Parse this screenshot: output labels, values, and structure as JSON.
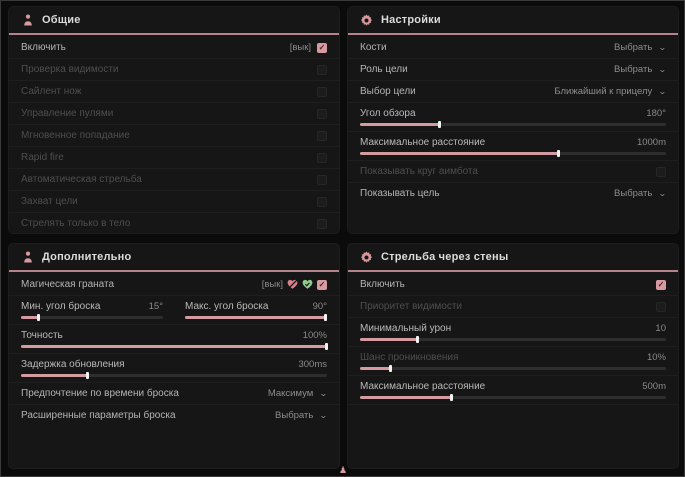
{
  "accent": {
    "pink": "#d79aa0",
    "green": "#8fc98f",
    "divider": "#b5848b"
  },
  "bottom_marker_glyph": "♟",
  "panels": {
    "general": {
      "title": "Общие",
      "rows": [
        {
          "label": "Включить",
          "value": "[вык]"
        },
        {
          "label": "Проверка видимости"
        },
        {
          "label": "Сайлент нож"
        },
        {
          "label": "Управление пулями"
        },
        {
          "label": "Мгновенное попадание"
        },
        {
          "label": "Rapid fire"
        },
        {
          "label": "Автоматическая стрельба"
        },
        {
          "label": "Захват цели"
        },
        {
          "label": "Стрелять только в тело"
        }
      ]
    },
    "settings": {
      "title": "Настройки",
      "bones": {
        "label": "Кости",
        "dropdown": "Выбрать"
      },
      "target_role": {
        "label": "Роль цели",
        "dropdown": "Выбрать"
      },
      "target_select": {
        "label": "Выбор цели",
        "dropdown": "Ближайший к прицелу"
      },
      "fov": {
        "label": "Угол обзора",
        "value": "180°",
        "fill": "26%"
      },
      "max_distance": {
        "label": "Максимальное расстояние",
        "value": "1000m",
        "fill": "65%"
      },
      "show_circle": {
        "label": "Показывать круг аимбота"
      },
      "show_target": {
        "label": "Показывать цель",
        "dropdown": "Выбрать"
      }
    },
    "additional": {
      "title": "Дополнительно",
      "magic_grenade": {
        "label": "Магическая граната",
        "value": "[вык]"
      },
      "min_throw": {
        "label": "Мин. угол броска",
        "value": "15°",
        "fill": "13%"
      },
      "max_throw": {
        "label": "Макс. угол броска",
        "value": "90°",
        "fill": "99%"
      },
      "accuracy": {
        "label": "Точность",
        "value": "100%",
        "fill": "100%"
      },
      "update_delay": {
        "label": "Задержка обновления",
        "value": "300ms",
        "fill": "22%"
      },
      "throw_time": {
        "label": "Предпочтение по времени броска",
        "dropdown": "Максимум"
      },
      "advanced_throw": {
        "label": "Расширенные параметры броска",
        "dropdown": "Выбрать"
      }
    },
    "wallbang": {
      "title": "Стрельба через стены",
      "enable": {
        "label": "Включить"
      },
      "visibility_priority": {
        "label": "Приоритет видимости"
      },
      "min_damage": {
        "label": "Минимальный урон",
        "value": "10",
        "fill": "19%"
      },
      "penetration_chance": {
        "label": "Шанс проникновения",
        "value": "10%",
        "fill": "10%"
      },
      "max_distance": {
        "label": "Максимальное расстояние",
        "value": "500m",
        "fill": "30%"
      }
    }
  }
}
